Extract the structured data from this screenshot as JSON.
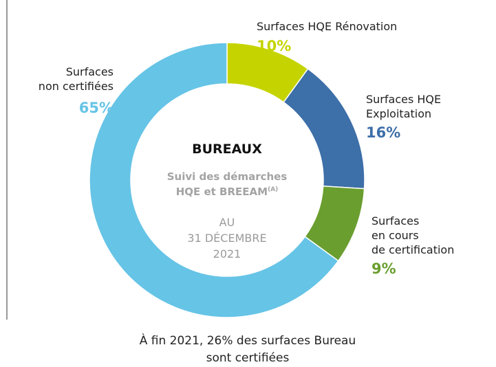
{
  "chart_data": {
    "type": "pie",
    "categories": [
      "Surfaces HQE Rénovation",
      "Surfaces HQE\nExploitation",
      "Surfaces\nen cours\nde certification",
      "Surfaces\nnon certifiées"
    ],
    "values": [
      10,
      16,
      9,
      65
    ],
    "value_labels": [
      "10%",
      "16%",
      "9%",
      "65%"
    ],
    "colors": [
      "#c5d400",
      "#3d6fa8",
      "#6a9e2f",
      "#66c4e6"
    ],
    "center_title": "BUREAUX",
    "center_subtitle": "Suivi des démarches\nHQE et BREEAM",
    "center_subtitle_note": "(A)",
    "center_date": "AU\n31 DÉCEMBRE\n2021",
    "footnote": "À fin 2021, 26% des surfaces Bureau\nsont certifiées"
  }
}
